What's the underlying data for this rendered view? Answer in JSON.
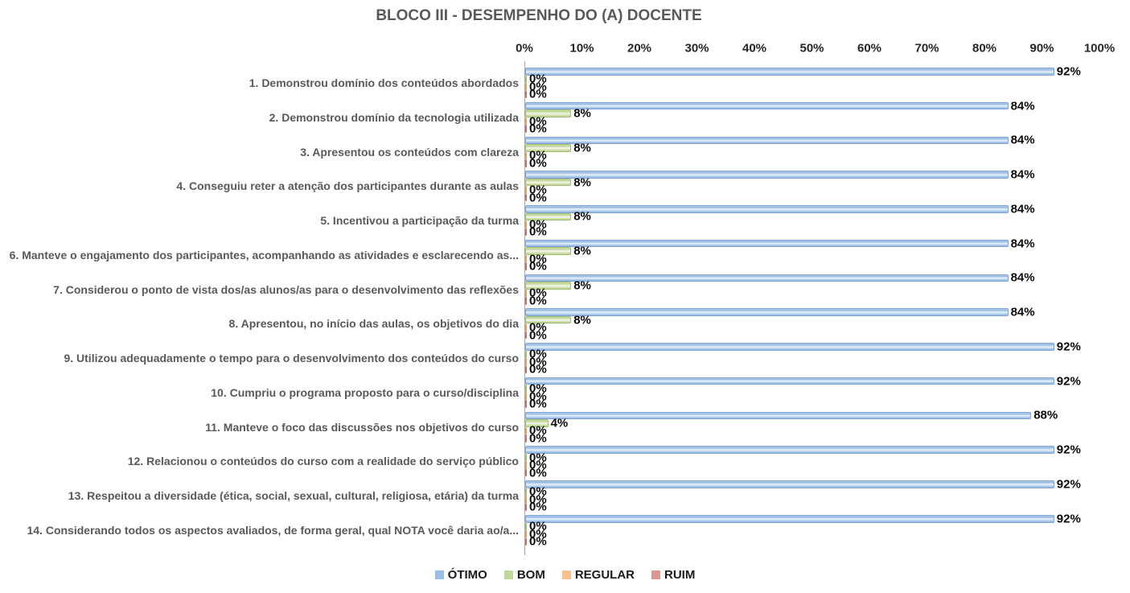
{
  "chart_data": {
    "type": "bar",
    "orientation": "horizontal",
    "title": "BLOCO III - DESEMPENHO DO (A) DOCENTE",
    "x_axis": {
      "min": 0,
      "max": 100,
      "step": 10,
      "unit": "%",
      "ticks": [
        "0%",
        "10%",
        "20%",
        "30%",
        "40%",
        "50%",
        "60%",
        "70%",
        "80%",
        "90%",
        "100%"
      ]
    },
    "categories": [
      "1. Demonstrou domínio dos conteúdos abordados",
      "2. Demonstrou domínio da tecnologia utilizada",
      "3. Apresentou os conteúdos com clareza",
      "4. Conseguiu reter a atenção dos participantes durante as aulas",
      "5. Incentivou a participação da turma",
      "6. Manteve o engajamento dos participantes, acompanhando as atividades e esclarecendo as...",
      "7. Considerou o ponto de vista dos/as alunos/as para o desenvolvimento das reflexões",
      "8. Apresentou, no início das aulas, os objetivos do dia",
      "9. Utilizou adequadamente o tempo para o desenvolvimento dos conteúdos do curso",
      "10. Cumpriu o programa proposto para o curso/disciplina",
      "11. Manteve o foco das discussões nos objetivos do curso",
      "12. Relacionou o conteúdos do curso com a realidade do serviço público",
      "13. Respeitou a diversidade (ética, social, sexual, cultural, religiosa, etária) da turma",
      "14. Considerando todos os aspectos avaliados, de forma geral, qual NOTA você daria ao/a..."
    ],
    "series": [
      {
        "name": "ÓTIMO",
        "color": "#9CBFE4",
        "values": [
          92,
          84,
          84,
          84,
          84,
          84,
          84,
          84,
          92,
          92,
          88,
          92,
          92,
          92
        ]
      },
      {
        "name": "BOM",
        "color": "#C3D69B",
        "values": [
          0,
          8,
          8,
          8,
          8,
          8,
          8,
          8,
          0,
          0,
          4,
          0,
          0,
          0
        ]
      },
      {
        "name": "REGULAR",
        "color": "#FAC090",
        "values": [
          0,
          0,
          0,
          0,
          0,
          0,
          0,
          0,
          0,
          0,
          0,
          0,
          0,
          0
        ]
      },
      {
        "name": "RUIM",
        "color": "#D99694",
        "values": [
          0,
          0,
          0,
          0,
          0,
          0,
          0,
          0,
          0,
          0,
          0,
          0,
          0,
          0
        ]
      }
    ],
    "data_labels": true,
    "label_format": "{value}%",
    "legend_position": "bottom",
    "gridlines": false
  }
}
